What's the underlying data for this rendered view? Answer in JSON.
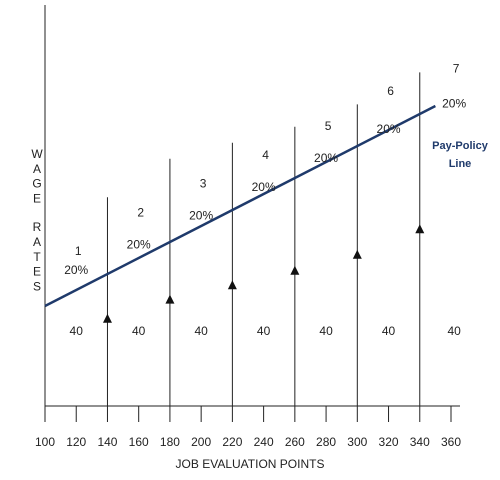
{
  "chart_data": {
    "type": "line",
    "xlabel": "JOB EVALUATION POINTS",
    "ylabel": "WAGE RATES",
    "x_ticks": [
      100,
      120,
      140,
      160,
      180,
      200,
      220,
      240,
      260,
      280,
      300,
      320,
      340,
      360
    ],
    "xlim": [
      100,
      360
    ],
    "pay_policy_line": {
      "label_line1": "Pay-Policy",
      "label_line2": "Line",
      "color": "#1f3a6b",
      "points": [
        {
          "x": 100,
          "y": 0.0
        },
        {
          "x": 350,
          "y": 0.625
        }
      ]
    },
    "grade_boundaries": [
      140,
      180,
      220,
      260,
      300,
      340
    ],
    "grade_boundary_tops": [
      0.34,
      0.46,
      0.51,
      0.56,
      0.63,
      0.73
    ],
    "midpoint_markers": [
      {
        "x": 140,
        "y": -0.04
      },
      {
        "x": 180,
        "y": 0.02
      },
      {
        "x": 220,
        "y": 0.065
      },
      {
        "x": 260,
        "y": 0.11
      },
      {
        "x": 300,
        "y": 0.16
      },
      {
        "x": 340,
        "y": 0.24
      }
    ],
    "grades": [
      {
        "number": "1",
        "spread": "20%",
        "width": "40",
        "center": 120,
        "num_y": 0.16,
        "pct_y": 0.1
      },
      {
        "number": "2",
        "spread": "20%",
        "width": "40",
        "center": 160,
        "num_y": 0.28,
        "pct_y": 0.18
      },
      {
        "number": "3",
        "spread": "20%",
        "width": "40",
        "center": 200,
        "num_y": 0.37,
        "pct_y": 0.27
      },
      {
        "number": "4",
        "spread": "20%",
        "width": "40",
        "center": 240,
        "num_y": 0.46,
        "pct_y": 0.36
      },
      {
        "number": "5",
        "spread": "20%",
        "width": "40",
        "center": 280,
        "num_y": 0.55,
        "pct_y": 0.45
      },
      {
        "number": "6",
        "spread": "20%",
        "width": "40",
        "center": 320,
        "num_y": 0.66,
        "pct_y": 0.54
      },
      {
        "number": "7",
        "spread": "20%",
        "width": "40",
        "center": 362,
        "num_y": 0.73,
        "pct_y": 0.62
      }
    ],
    "width_label_y": -0.09
  }
}
